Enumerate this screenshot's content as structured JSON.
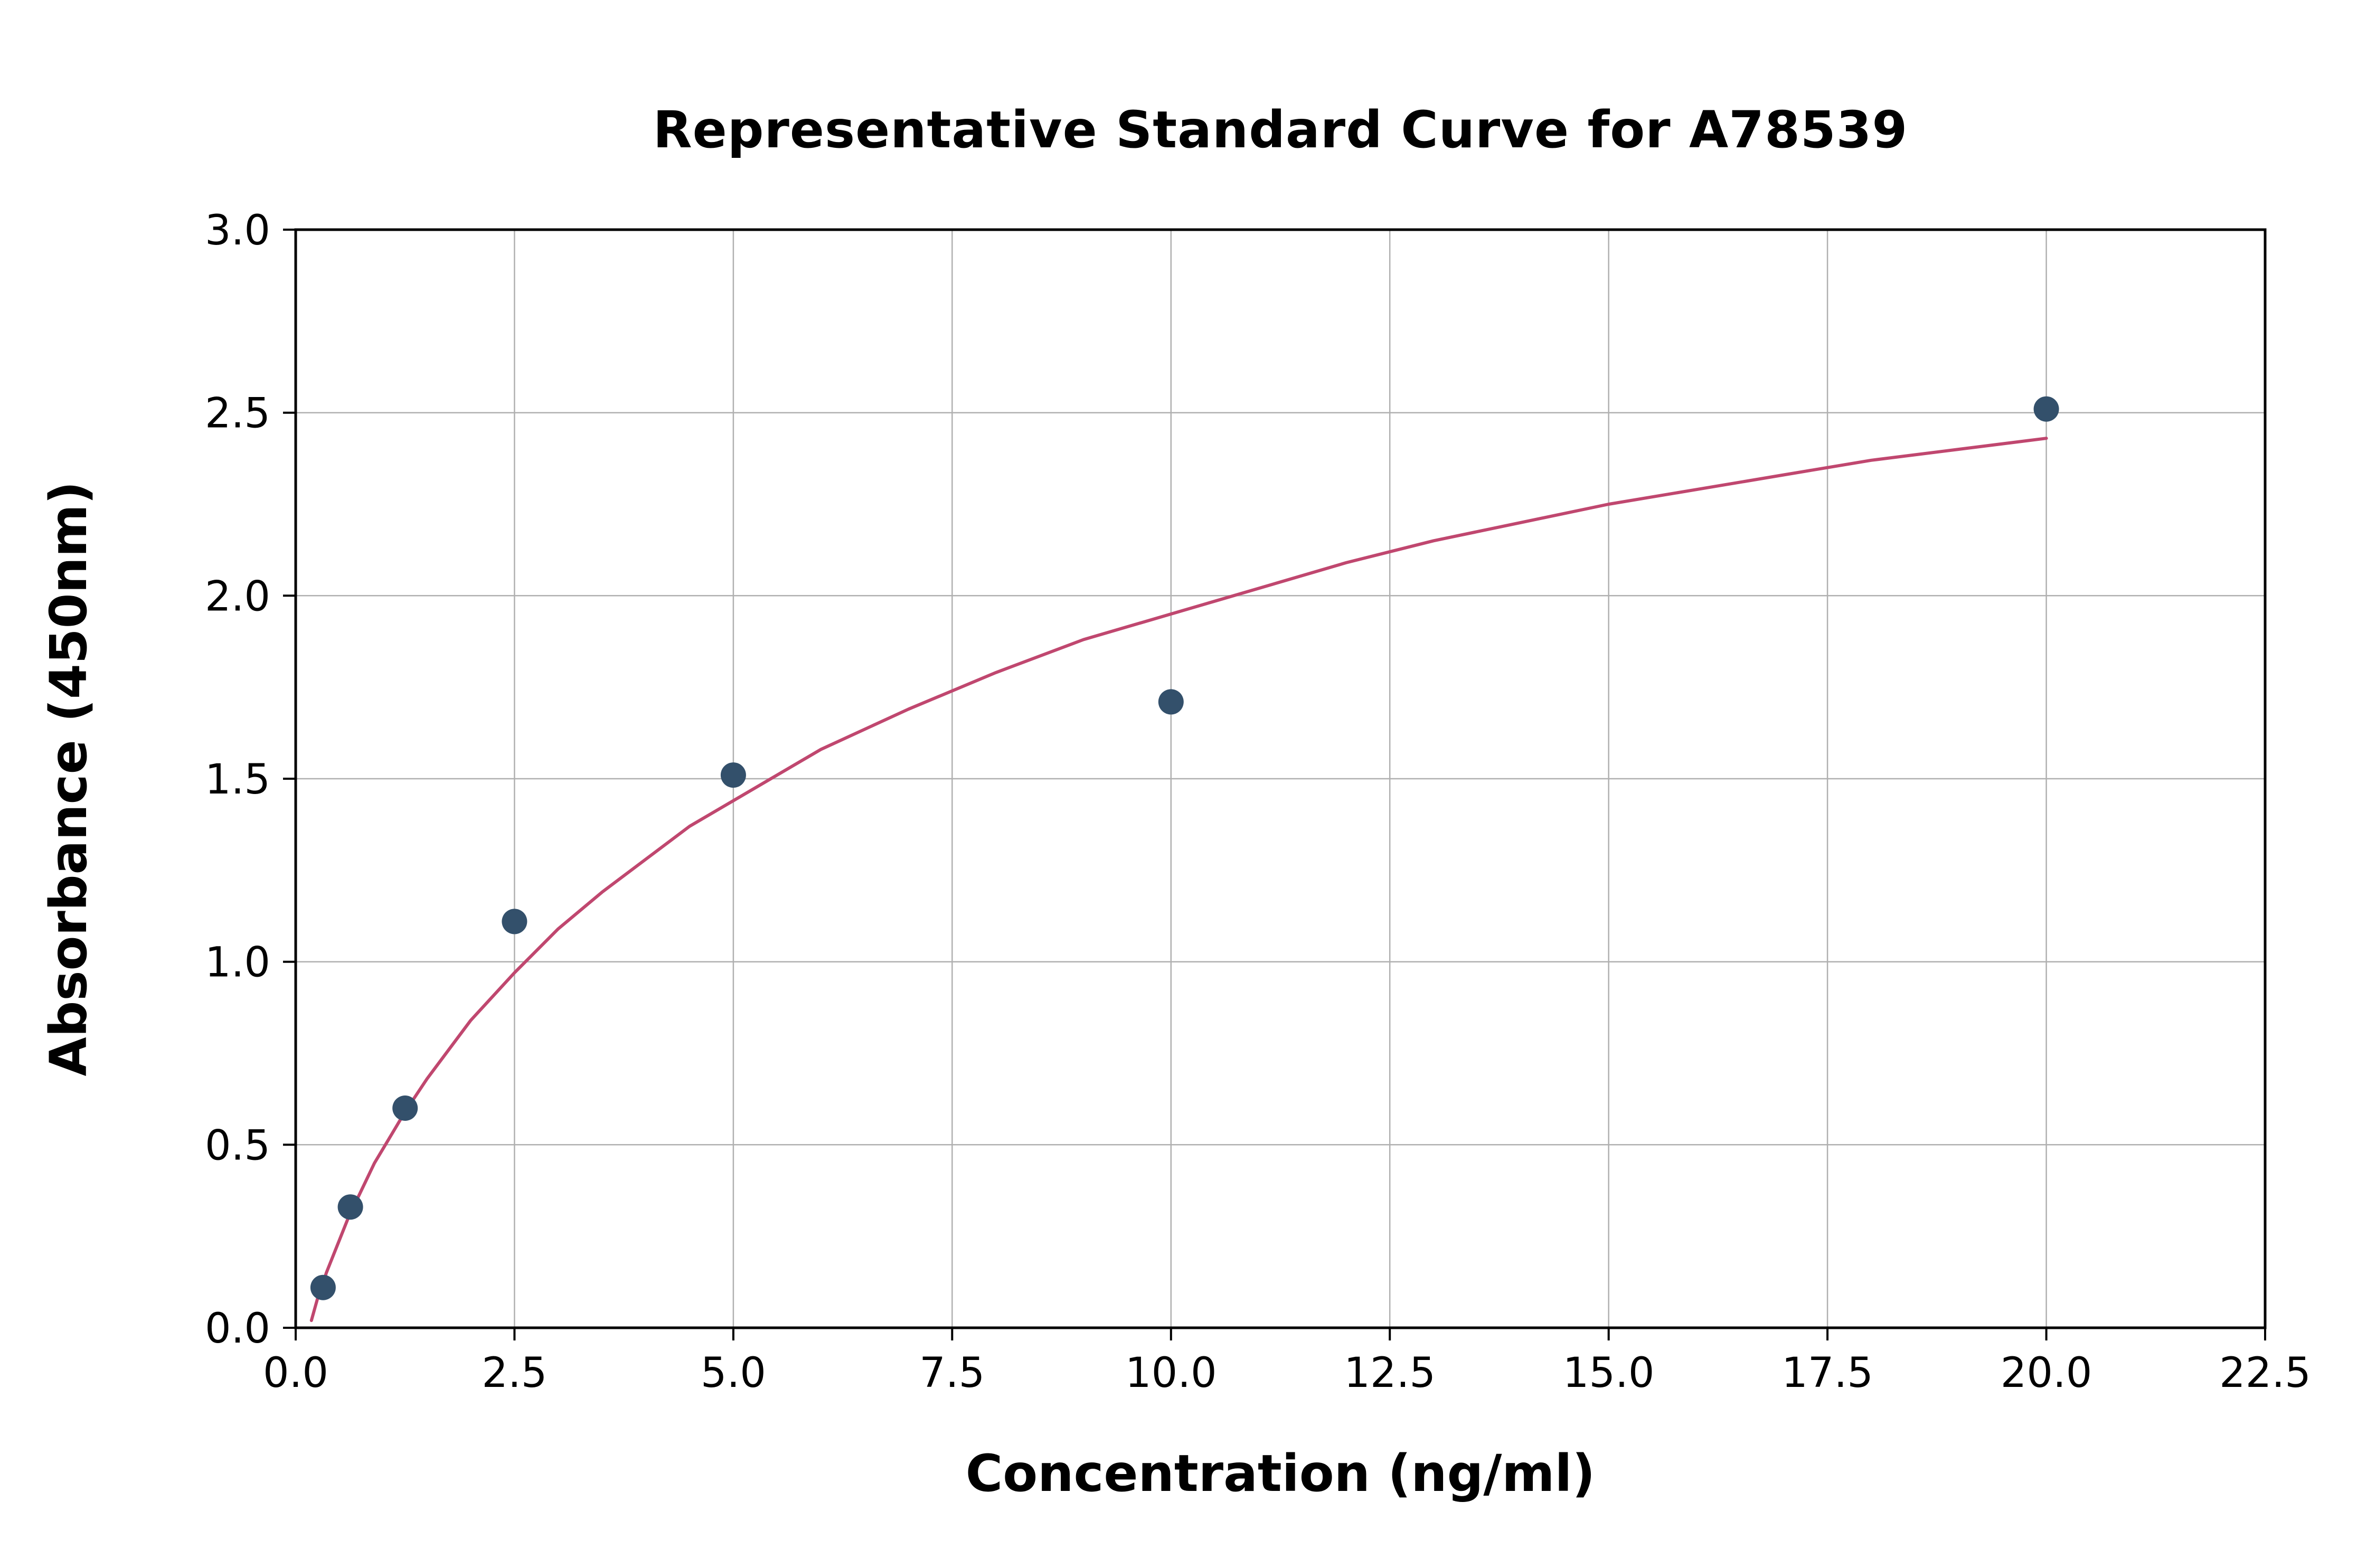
{
  "chart_data": {
    "type": "scatter",
    "title": "Representative Standard Curve for A78539",
    "xlabel": "Concentration (ng/ml)",
    "ylabel": "Absorbance (450nm)",
    "xlim": [
      0,
      22.5
    ],
    "ylim": [
      0,
      3.0
    ],
    "grid": true,
    "legend": "none",
    "xtick_values": [
      0,
      2.5,
      5,
      7.5,
      10,
      12.5,
      15,
      17.5,
      20,
      22.5
    ],
    "xtick_labels": [
      "0.0",
      "2.5",
      "5.0",
      "7.5",
      "10.0",
      "12.5",
      "15.0",
      "17.5",
      "20.0",
      "22.5"
    ],
    "ytick_values": [
      0,
      0.5,
      1,
      1.5,
      2,
      2.5,
      3
    ],
    "ytick_labels": [
      "0.0",
      "0.5",
      "1.0",
      "1.5",
      "2.0",
      "2.5",
      "3.0"
    ],
    "points": [
      [
        0.313,
        0.11
      ],
      [
        0.625,
        0.33
      ],
      [
        1.25,
        0.6
      ],
      [
        2.5,
        1.11
      ],
      [
        5.0,
        1.51
      ],
      [
        10.0,
        1.71
      ],
      [
        20.0,
        2.51
      ]
    ],
    "fit_curve_points": [
      [
        0.18,
        0.02
      ],
      [
        0.25,
        0.08
      ],
      [
        0.3,
        0.11
      ],
      [
        0.35,
        0.15
      ],
      [
        0.4,
        0.18
      ],
      [
        0.45,
        0.21
      ],
      [
        0.5,
        0.24
      ],
      [
        0.6,
        0.3
      ],
      [
        0.7,
        0.35
      ],
      [
        0.8,
        0.4
      ],
      [
        0.9,
        0.45
      ],
      [
        1.0,
        0.49
      ],
      [
        1.1,
        0.53
      ],
      [
        1.25,
        0.59
      ],
      [
        1.5,
        0.68
      ],
      [
        1.75,
        0.76
      ],
      [
        2.0,
        0.84
      ],
      [
        2.5,
        0.97
      ],
      [
        3.0,
        1.09
      ],
      [
        3.5,
        1.19
      ],
      [
        4.0,
        1.28
      ],
      [
        4.5,
        1.37
      ],
      [
        5.0,
        1.44
      ],
      [
        6.0,
        1.58
      ],
      [
        7.0,
        1.69
      ],
      [
        8.0,
        1.79
      ],
      [
        9.0,
        1.88
      ],
      [
        10.0,
        1.95
      ],
      [
        11.0,
        2.02
      ],
      [
        12.0,
        2.09
      ],
      [
        13.0,
        2.15
      ],
      [
        14.0,
        2.2
      ],
      [
        15.0,
        2.25
      ],
      [
        16.0,
        2.29
      ],
      [
        17.0,
        2.33
      ],
      [
        18.0,
        2.37
      ],
      [
        19.0,
        2.4
      ],
      [
        20.0,
        2.43
      ]
    ],
    "colors": {
      "curve": "#c0476f",
      "points": "#33506b",
      "grid": "#b0b0b0",
      "frame": "#000000"
    }
  }
}
